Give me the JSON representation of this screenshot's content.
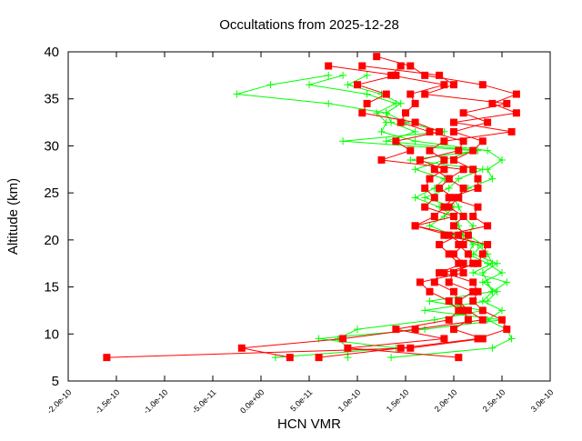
{
  "chart_data": {
    "type": "line",
    "title": "Occultations from 2025-12-28",
    "xlabel": "HCN VMR",
    "ylabel": "Altitude (km)",
    "xlim": [
      -2e-10,
      3e-10
    ],
    "ylim": [
      5,
      40
    ],
    "xticks": [
      -2e-10,
      -1.5e-10,
      -1e-10,
      -5e-11,
      0,
      5e-11,
      1e-10,
      1.5e-10,
      2e-10,
      2.5e-10,
      3e-10
    ],
    "xtick_labels": [
      "-2.0e-10",
      "-1.5e-10",
      "-1.0e-10",
      "-5.0e-11",
      "0.0e+00",
      "5.0e-11",
      "1.0e-10",
      "1.5e-10",
      "2.0e-10",
      "2.5e-10",
      "3.0e-10"
    ],
    "yticks": [
      5,
      10,
      15,
      20,
      25,
      30,
      35,
      40
    ],
    "ytick_labels": [
      "5",
      "10",
      "15",
      "20",
      "25",
      "30",
      "35",
      "40"
    ],
    "grid": false,
    "legend": "none",
    "altitudes": [
      7.5,
      8.5,
      9.5,
      10.5,
      11.5,
      12.5,
      13.5,
      14.5,
      15.5,
      16.5,
      17.5,
      18.5,
      19.5,
      20.5,
      21.5,
      22.5,
      23.5,
      24.5,
      25.5,
      26.5,
      27.5,
      28.5,
      29.5,
      30.5,
      31.5,
      32.5,
      33.5,
      34.5,
      35.5,
      36.5,
      37.5,
      38.5,
      39.5
    ],
    "series": [
      {
        "marker": "square",
        "color": "#ff0000",
        "profiles": [
          [
            -1.6e-10,
            1.55e-10,
            2.3e-10,
            2e-10,
            2.15e-10,
            2.1e-10,
            2.05e-10,
            2e-10,
            1.8e-10,
            1.85e-10,
            2.1e-10,
            2e-10,
            2.1e-10,
            1.95e-10,
            1.6e-10,
            1.8e-10,
            1.9e-10,
            2e-10,
            1.85e-10,
            1.95e-10,
            1.8e-10,
            1.9e-10,
            1.75e-10,
            1.9e-10,
            2.6e-10,
            2e-10,
            2.65e-10,
            2.4e-10,
            2.65e-10,
            2.3e-10,
            1.7e-10,
            1.55e-10,
            1.2e-10
          ],
          [
            3e-11,
            -2e-11,
            8.5e-11,
            1.6e-10,
            2.3e-10,
            2.15e-10,
            2.05e-10,
            2.2e-10,
            1.95e-10,
            2e-10,
            2.2e-10,
            2.15e-10,
            2.05e-10,
            2.15e-10,
            2e-10,
            2.1e-10,
            1.95e-10,
            2.05e-10,
            2.1e-10,
            1.95e-10,
            2.1e-10,
            1.25e-10,
            1.55e-10,
            1.4e-10,
            1.85e-10,
            1.6e-10,
            1.05e-10,
            1.1e-10,
            1.3e-10,
            1e-10,
            1.4e-10,
            7e-11,
            null
          ],
          [
            6e-11,
            1.45e-10,
            2.25e-10,
            2.55e-10,
            2.5e-10,
            2.3e-10,
            2.2e-10,
            2.25e-10,
            2.2e-10,
            1.9e-10,
            2.25e-10,
            2.3e-10,
            2.35e-10,
            1.9e-10,
            2.35e-10,
            2.2e-10,
            2.25e-10,
            1.95e-10,
            2.25e-10,
            2.25e-10,
            2.2e-10,
            2e-10,
            2.2e-10,
            2.3e-10,
            2e-10,
            2.35e-10,
            2.1e-10,
            2.55e-10,
            1.7e-10,
            2e-10,
            1.85e-10,
            1.05e-10,
            null
          ],
          [
            2.05e-10,
            9e-11,
            1.9e-10,
            1.4e-10,
            1.95e-10,
            2.05e-10,
            1.95e-10,
            1.75e-10,
            1.65e-10,
            2.1e-10,
            2.05e-10,
            1.95e-10,
            1.85e-10,
            2.05e-10,
            1.6e-10,
            2e-10,
            1.7e-10,
            1.8e-10,
            1.7e-10,
            1.75e-10,
            1.9e-10,
            1.65e-10,
            2.05e-10,
            2.1e-10,
            1.75e-10,
            1.45e-10,
            1.5e-10,
            1.6e-10,
            1.55e-10,
            1.9e-10,
            1.35e-10,
            1.45e-10,
            null
          ]
        ]
      },
      {
        "marker": "plus",
        "color": "#00ff00",
        "profiles": [
          [
            1.5e-11,
            1.4e-10,
            6e-11,
            1.7e-10,
            2.5e-10,
            1.7e-10,
            2.35e-10,
            2.45e-10,
            2.3e-10,
            2.5e-10,
            2.35e-10,
            2.15e-10,
            2.2e-10,
            2.1e-10,
            2.05e-10,
            2e-10,
            1.85e-10,
            1.6e-10,
            1.8e-10,
            1.9e-10,
            1.6e-10,
            1.9e-10,
            2.2e-10,
            8.5e-11,
            1.9e-10,
            1.5e-10,
            1.3e-10,
            7e-11,
            -2.5e-11,
            1e-11,
            7e-11,
            null,
            null
          ],
          [
            1.35e-10,
            2.4e-10,
            2.6e-10,
            2.55e-10,
            2.35e-10,
            2.5e-10,
            2.3e-10,
            2.4e-10,
            2.35e-10,
            2.3e-10,
            2.45e-10,
            2.2e-10,
            2.3e-10,
            2.15e-10,
            2.2e-10,
            2.1e-10,
            2.05e-10,
            2e-10,
            2.15e-10,
            2.4e-10,
            2.35e-10,
            2.5e-10,
            2.35e-10,
            1.6e-10,
            1.25e-10,
            1.3e-10,
            1.2e-10,
            1.4e-10,
            1.1e-10,
            5e-11,
            8.5e-11,
            null,
            null
          ],
          [
            9e-11,
            9e-11,
            8e-11,
            1e-10,
            1.8e-10,
            2.3e-10,
            1.75e-10,
            2.4e-10,
            2.55e-10,
            2.2e-10,
            2.4e-10,
            2.35e-10,
            2.25e-10,
            2e-10,
            1.75e-10,
            1.9e-10,
            2e-10,
            1.7e-10,
            1.95e-10,
            2.05e-10,
            2.3e-10,
            1.55e-10,
            2.25e-10,
            1.3e-10,
            1.6e-10,
            1.35e-10,
            1.3e-10,
            1.45e-10,
            1.25e-10,
            9e-11,
            1.1e-10,
            null,
            null
          ]
        ]
      }
    ]
  }
}
